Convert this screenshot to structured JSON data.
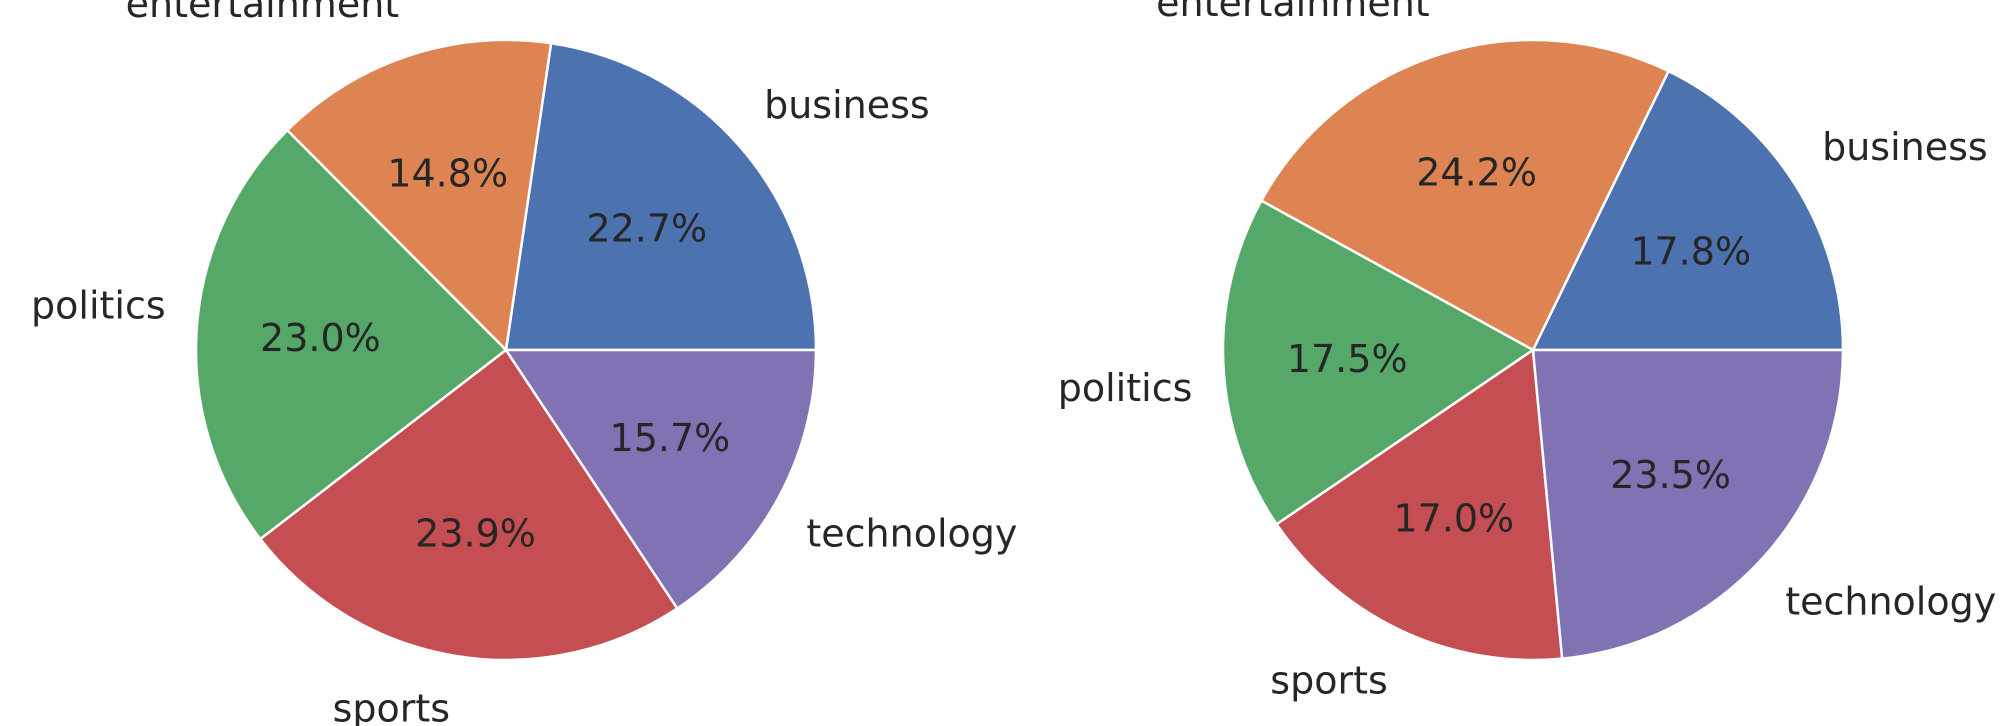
{
  "chart_data": [
    {
      "type": "pie",
      "categories": [
        "business",
        "entertainment",
        "politics",
        "sports",
        "technology"
      ],
      "values": [
        22.7,
        14.8,
        23.0,
        23.9,
        15.7
      ],
      "labels": [
        "22.7%",
        "14.8%",
        "23.0%",
        "23.9%",
        "15.7%"
      ],
      "colors": [
        "#4c72b0",
        "#dd8452",
        "#55a868",
        "#c44e52",
        "#8172b3"
      ],
      "start_angle_deg": 0,
      "direction": "counterclockwise"
    },
    {
      "type": "pie",
      "categories": [
        "business",
        "entertainment",
        "politics",
        "sports",
        "technology"
      ],
      "values": [
        17.8,
        24.2,
        17.5,
        17.0,
        23.5
      ],
      "labels": [
        "17.8%",
        "24.2%",
        "17.5%",
        "17.0%",
        "23.5%"
      ],
      "colors": [
        "#4c72b0",
        "#dd8452",
        "#55a868",
        "#c44e52",
        "#8172b3"
      ],
      "start_angle_deg": 0,
      "direction": "counterclockwise"
    }
  ]
}
